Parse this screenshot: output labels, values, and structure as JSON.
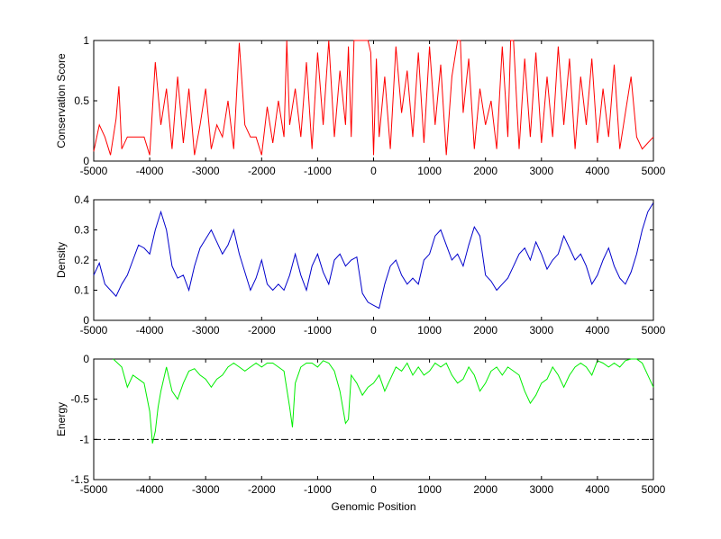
{
  "chart_data": [
    {
      "type": "line",
      "title": "",
      "xlabel": "",
      "ylabel": "Conservation Score",
      "xlim": [
        -5000,
        5000
      ],
      "ylim": [
        0,
        1
      ],
      "xticks": [
        "-5000",
        "-4000",
        "-3000",
        "-2000",
        "-1000",
        "0",
        "1000",
        "2000",
        "3000",
        "4000",
        "5000"
      ],
      "yticks": [
        "0",
        "0.5",
        "1"
      ],
      "grid": false,
      "series": [
        {
          "color": "#ff0000",
          "x": [
            -5000,
            -4900,
            -4800,
            -4700,
            -4600,
            -4550,
            -4500,
            -4400,
            -4300,
            -4200,
            -4100,
            -4000,
            -3900,
            -3800,
            -3700,
            -3600,
            -3500,
            -3400,
            -3300,
            -3200,
            -3100,
            -3000,
            -2900,
            -2800,
            -2700,
            -2600,
            -2500,
            -2400,
            -2300,
            -2200,
            -2100,
            -2000,
            -1900,
            -1800,
            -1700,
            -1600,
            -1550,
            -1500,
            -1400,
            -1300,
            -1200,
            -1100,
            -1000,
            -900,
            -800,
            -700,
            -600,
            -500,
            -450,
            -400,
            -350,
            -300,
            -250,
            -200,
            -150,
            -100,
            -50,
            0,
            50,
            100,
            200,
            300,
            400,
            500,
            600,
            700,
            800,
            900,
            1000,
            1100,
            1200,
            1300,
            1400,
            1500,
            1550,
            1600,
            1700,
            1800,
            1900,
            2000,
            2100,
            2200,
            2300,
            2400,
            2450,
            2500,
            2600,
            2700,
            2800,
            2900,
            3000,
            3100,
            3200,
            3300,
            3400,
            3500,
            3600,
            3700,
            3800,
            3900,
            4000,
            4100,
            4200,
            4300,
            4400,
            4500,
            4600,
            4700,
            4800,
            4900,
            5000
          ],
          "values": [
            0.08,
            0.3,
            0.2,
            0.05,
            0.35,
            0.62,
            0.1,
            0.2,
            0.2,
            0.2,
            0.2,
            0.05,
            0.82,
            0.3,
            0.6,
            0.1,
            0.7,
            0.15,
            0.6,
            0.05,
            0.3,
            0.6,
            0.1,
            0.3,
            0.2,
            0.5,
            0.1,
            0.98,
            0.3,
            0.2,
            0.2,
            0.05,
            0.45,
            0.15,
            0.5,
            0.2,
            1.0,
            0.3,
            0.6,
            0.2,
            0.82,
            0.1,
            0.9,
            0.3,
            1.0,
            0.2,
            0.75,
            0.3,
            0.95,
            0.2,
            1.0,
            1.0,
            1.0,
            1.0,
            1.0,
            1.0,
            0.9,
            0.05,
            0.85,
            0.2,
            0.7,
            0.1,
            0.95,
            0.4,
            0.75,
            0.2,
            0.9,
            0.15,
            0.95,
            0.3,
            0.8,
            0.05,
            0.7,
            1.0,
            1.0,
            0.4,
            0.85,
            0.1,
            0.6,
            0.3,
            0.5,
            0.1,
            0.95,
            0.2,
            1.0,
            1.0,
            0.1,
            0.85,
            0.2,
            0.9,
            0.15,
            0.7,
            0.2,
            0.95,
            0.3,
            0.85,
            0.1,
            0.7,
            0.3,
            0.85,
            0.15,
            0.6,
            0.2,
            0.8,
            0.1,
            0.4,
            0.7,
            0.2,
            0.1,
            0.15,
            0.2
          ]
        }
      ]
    },
    {
      "type": "line",
      "title": "",
      "xlabel": "",
      "ylabel": "Density",
      "xlim": [
        -5000,
        5000
      ],
      "ylim": [
        0,
        0.4
      ],
      "xticks": [
        "-5000",
        "-4000",
        "-3000",
        "-2000",
        "-1000",
        "0",
        "1000",
        "2000",
        "3000",
        "4000",
        "5000"
      ],
      "yticks": [
        "0",
        "0.1",
        "0.2",
        "0.3",
        "0.4"
      ],
      "grid": false,
      "series": [
        {
          "color": "#0000cc",
          "x": [
            -5000,
            -4900,
            -4800,
            -4700,
            -4600,
            -4500,
            -4400,
            -4300,
            -4200,
            -4100,
            -4000,
            -3900,
            -3800,
            -3700,
            -3600,
            -3500,
            -3400,
            -3300,
            -3200,
            -3100,
            -3000,
            -2900,
            -2800,
            -2700,
            -2600,
            -2500,
            -2400,
            -2300,
            -2200,
            -2100,
            -2000,
            -1900,
            -1800,
            -1700,
            -1600,
            -1500,
            -1400,
            -1300,
            -1200,
            -1100,
            -1000,
            -900,
            -800,
            -700,
            -600,
            -500,
            -400,
            -300,
            -200,
            -100,
            0,
            100,
            200,
            300,
            400,
            500,
            600,
            700,
            800,
            900,
            1000,
            1100,
            1200,
            1300,
            1400,
            1500,
            1600,
            1700,
            1800,
            1900,
            2000,
            2100,
            2200,
            2300,
            2400,
            2500,
            2600,
            2700,
            2800,
            2900,
            3000,
            3100,
            3200,
            3300,
            3400,
            3500,
            3600,
            3700,
            3800,
            3900,
            4000,
            4100,
            4200,
            4300,
            4400,
            4500,
            4600,
            4700,
            4800,
            4900,
            5000
          ],
          "values": [
            0.15,
            0.19,
            0.12,
            0.1,
            0.08,
            0.12,
            0.15,
            0.2,
            0.25,
            0.24,
            0.22,
            0.3,
            0.36,
            0.3,
            0.18,
            0.14,
            0.15,
            0.1,
            0.18,
            0.24,
            0.27,
            0.3,
            0.26,
            0.22,
            0.25,
            0.3,
            0.22,
            0.16,
            0.1,
            0.14,
            0.2,
            0.12,
            0.1,
            0.12,
            0.1,
            0.15,
            0.22,
            0.15,
            0.1,
            0.18,
            0.22,
            0.16,
            0.12,
            0.2,
            0.22,
            0.18,
            0.2,
            0.21,
            0.09,
            0.06,
            0.05,
            0.04,
            0.12,
            0.18,
            0.2,
            0.15,
            0.12,
            0.14,
            0.12,
            0.2,
            0.22,
            0.28,
            0.3,
            0.25,
            0.2,
            0.22,
            0.18,
            0.25,
            0.31,
            0.28,
            0.15,
            0.13,
            0.1,
            0.12,
            0.14,
            0.18,
            0.22,
            0.24,
            0.2,
            0.26,
            0.22,
            0.17,
            0.2,
            0.22,
            0.28,
            0.24,
            0.2,
            0.22,
            0.18,
            0.12,
            0.15,
            0.2,
            0.24,
            0.18,
            0.14,
            0.12,
            0.16,
            0.22,
            0.3,
            0.36,
            0.39
          ]
        }
      ]
    },
    {
      "type": "line",
      "title": "",
      "xlabel": "Genomic Position",
      "ylabel": "Energy",
      "xlim": [
        -5000,
        5000
      ],
      "ylim": [
        -1.5,
        0
      ],
      "xticks": [
        "-5000",
        "-4000",
        "-3000",
        "-2000",
        "-1000",
        "0",
        "1000",
        "2000",
        "3000",
        "4000",
        "5000"
      ],
      "yticks": [
        "0",
        "-0.5",
        "-1",
        "-1.5"
      ],
      "grid": false,
      "reference_line": {
        "y": -1,
        "style": "dash-dot",
        "color": "#000000"
      },
      "series": [
        {
          "color": "#00ee00",
          "x": [
            -4650,
            -4500,
            -4400,
            -4300,
            -4200,
            -4100,
            -4000,
            -3950,
            -3900,
            -3850,
            -3800,
            -3700,
            -3600,
            -3500,
            -3400,
            -3300,
            -3200,
            -3100,
            -3000,
            -2900,
            -2800,
            -2700,
            -2600,
            -2500,
            -2400,
            -2300,
            -2200,
            -2100,
            -2000,
            -1900,
            -1800,
            -1700,
            -1600,
            -1500,
            -1450,
            -1400,
            -1300,
            -1200,
            -1100,
            -1000,
            -900,
            -800,
            -700,
            -600,
            -500,
            -450,
            -400,
            -300,
            -200,
            -100,
            0,
            100,
            200,
            300,
            400,
            500,
            600,
            700,
            800,
            900,
            1000,
            1100,
            1200,
            1300,
            1400,
            1500,
            1600,
            1700,
            1800,
            1900,
            2000,
            2100,
            2200,
            2300,
            2400,
            2500,
            2600,
            2700,
            2800,
            2900,
            3000,
            3100,
            3200,
            3300,
            3400,
            3500,
            3600,
            3700,
            3800,
            3900,
            4000,
            4100,
            4200,
            4300,
            4400,
            4500,
            4600,
            4700,
            4800,
            4900,
            5000
          ],
          "values": [
            0,
            -0.1,
            -0.35,
            -0.2,
            -0.25,
            -0.3,
            -0.65,
            -1.05,
            -0.9,
            -0.6,
            -0.4,
            -0.1,
            -0.4,
            -0.5,
            -0.3,
            -0.15,
            -0.12,
            -0.2,
            -0.25,
            -0.35,
            -0.25,
            -0.2,
            -0.1,
            -0.05,
            -0.1,
            -0.15,
            -0.1,
            -0.05,
            -0.1,
            -0.05,
            -0.05,
            -0.1,
            -0.15,
            -0.6,
            -0.85,
            -0.3,
            -0.1,
            -0.05,
            -0.05,
            -0.1,
            -0.02,
            -0.05,
            -0.15,
            -0.4,
            -0.8,
            -0.75,
            -0.2,
            -0.3,
            -0.45,
            -0.35,
            -0.3,
            -0.2,
            -0.4,
            -0.25,
            -0.1,
            -0.15,
            -0.05,
            -0.2,
            -0.1,
            -0.2,
            -0.15,
            -0.05,
            -0.1,
            -0.05,
            -0.2,
            -0.3,
            -0.25,
            -0.1,
            -0.2,
            -0.4,
            -0.3,
            -0.15,
            -0.1,
            -0.2,
            -0.1,
            -0.15,
            -0.2,
            -0.4,
            -0.55,
            -0.45,
            -0.3,
            -0.25,
            -0.1,
            -0.2,
            -0.35,
            -0.2,
            -0.1,
            -0.05,
            -0.1,
            -0.2,
            -0.02,
            -0.05,
            -0.1,
            -0.05,
            -0.1,
            -0.02,
            0,
            0,
            -0.05,
            -0.2,
            -0.35
          ]
        }
      ]
    }
  ]
}
